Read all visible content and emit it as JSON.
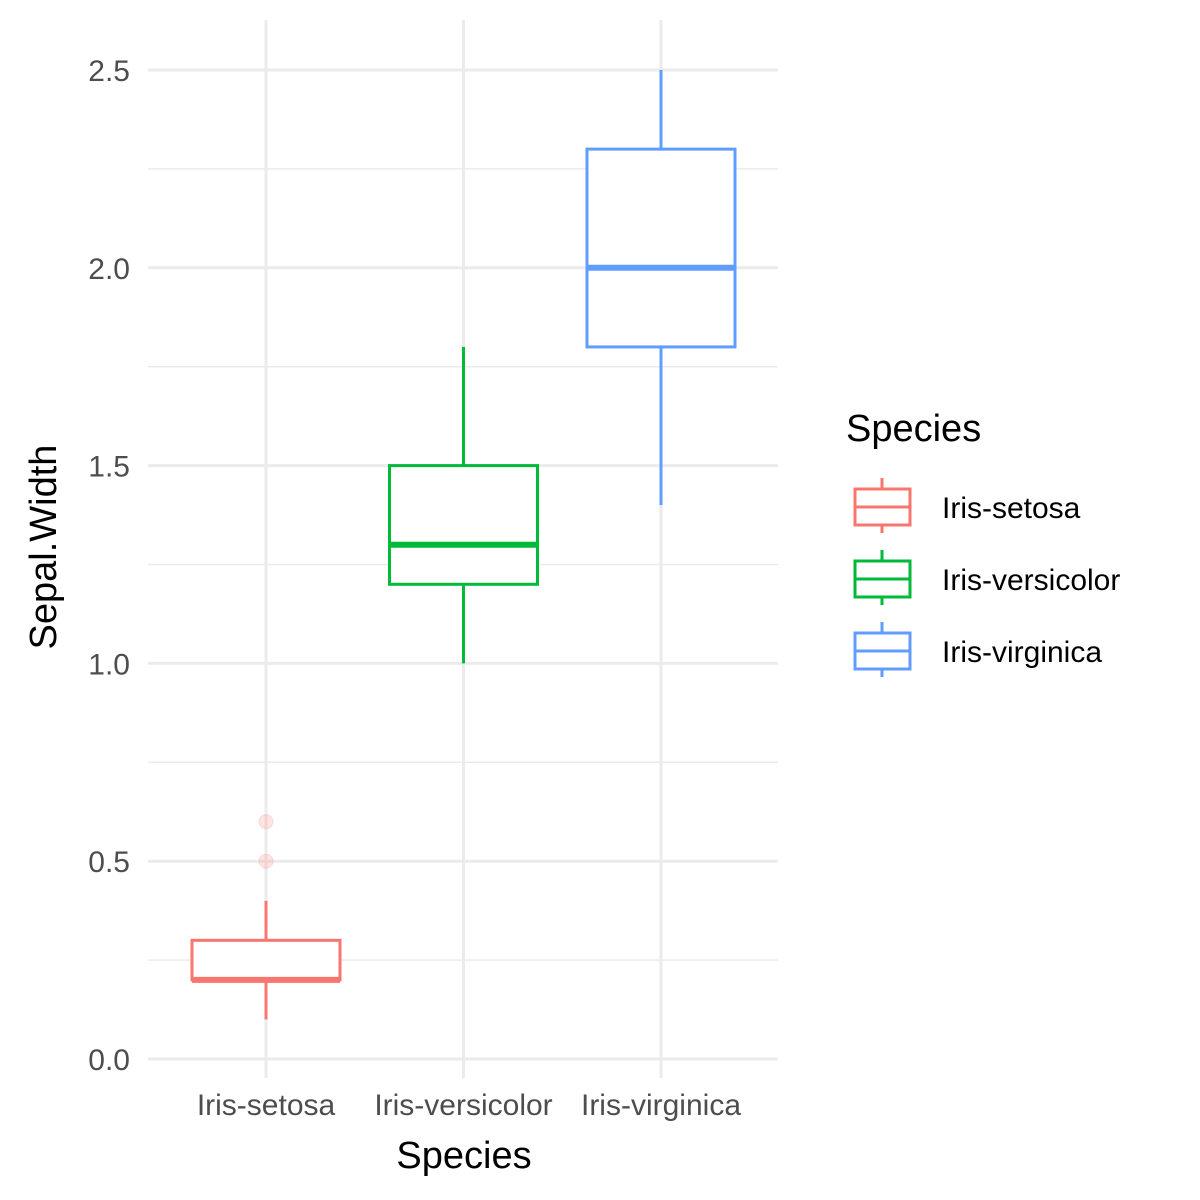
{
  "chart_data": {
    "type": "box",
    "xlabel": "Species",
    "ylabel": "Sepal.Width",
    "ylim": [
      0,
      2.6
    ],
    "yticks": [
      0.0,
      0.5,
      1.0,
      1.5,
      2.0,
      2.5
    ],
    "ytick_labels": [
      "0.0",
      "0.5",
      "1.0",
      "1.5",
      "2.0",
      "2.5"
    ],
    "grid": true,
    "categories": [
      "Iris-setosa",
      "Iris-versicolor",
      "Iris-virginica"
    ],
    "series": [
      {
        "name": "Iris-setosa",
        "color": "#F8766D",
        "min": 0.1,
        "q1": 0.2,
        "median": 0.2,
        "q3": 0.3,
        "max": 0.4,
        "outliers": [
          0.5,
          0.6
        ]
      },
      {
        "name": "Iris-versicolor",
        "color": "#00BA38",
        "min": 1.0,
        "q1": 1.2,
        "median": 1.3,
        "q3": 1.5,
        "max": 1.8,
        "outliers": []
      },
      {
        "name": "Iris-virginica",
        "color": "#619CFF",
        "min": 1.4,
        "q1": 1.8,
        "median": 2.0,
        "q3": 2.3,
        "max": 2.5,
        "outliers": []
      }
    ],
    "legend": {
      "title": "Species",
      "position": "right",
      "entries": [
        "Iris-setosa",
        "Iris-versicolor",
        "Iris-virginica"
      ]
    }
  }
}
